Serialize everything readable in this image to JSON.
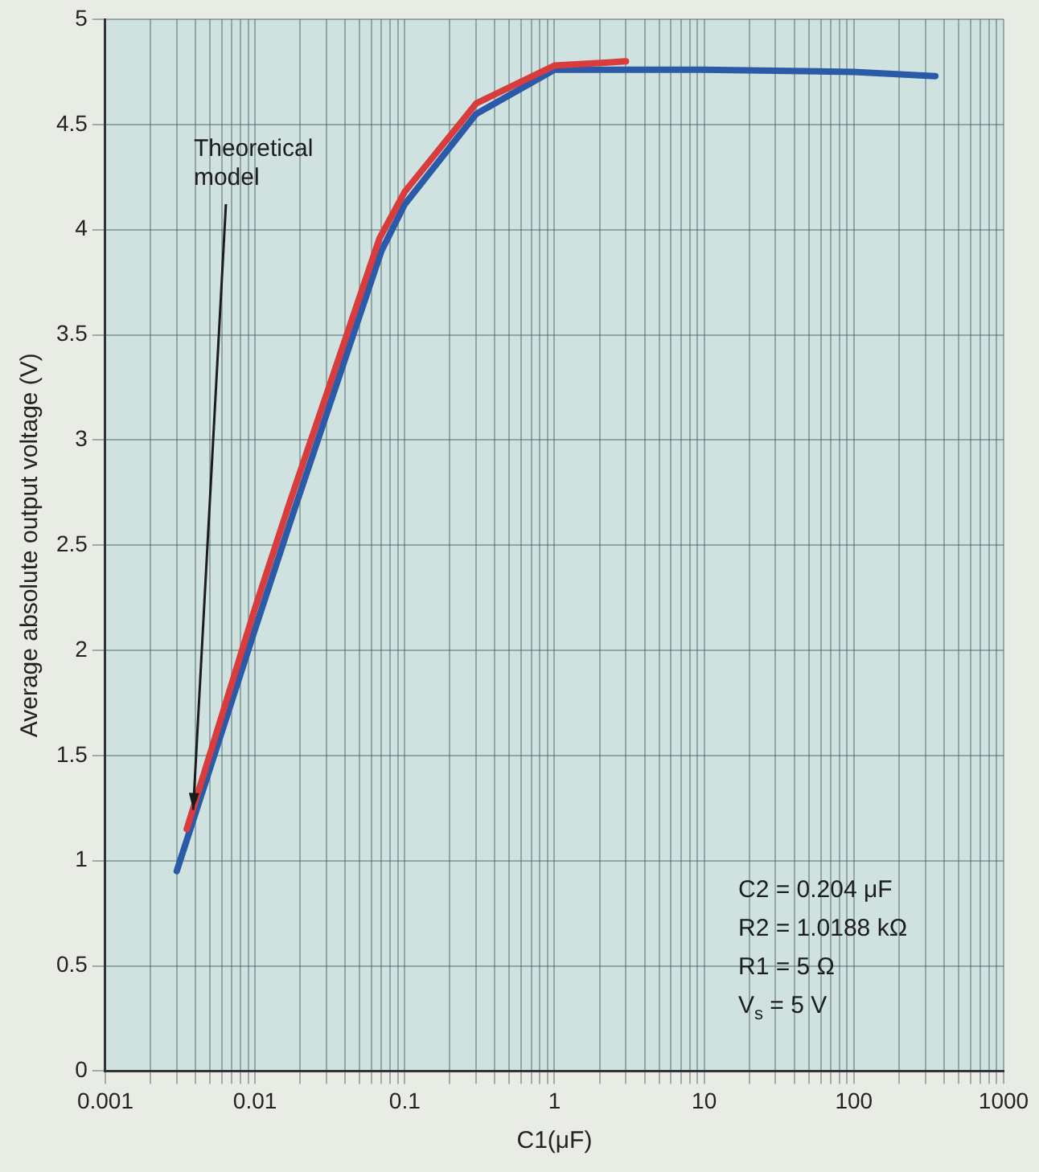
{
  "chart_data": {
    "type": "line",
    "xlabel": "C1(μF)",
    "ylabel": "Average absolute output voltage (V)",
    "log": "x",
    "xlim": [
      0.001,
      1000
    ],
    "ylim": [
      0,
      5
    ],
    "xticks": [
      0.001,
      {
        "value": 0.002,
        "label": null
      },
      {
        "value": 0.003,
        "label": null
      },
      {
        "value": 0.004,
        "label": null
      },
      {
        "value": 0.005,
        "label": null
      },
      {
        "value": 0.006,
        "label": null
      },
      {
        "value": 0.007,
        "label": null
      },
      {
        "value": 0.008,
        "label": null
      },
      {
        "value": 0.009,
        "label": null
      },
      0.01,
      {
        "value": 0.02,
        "label": null
      },
      {
        "value": 0.03,
        "label": null
      },
      {
        "value": 0.04,
        "label": null
      },
      {
        "value": 0.05,
        "label": null
      },
      {
        "value": 0.06,
        "label": null
      },
      {
        "value": 0.07,
        "label": null
      },
      {
        "value": 0.08,
        "label": null
      },
      {
        "value": 0.09,
        "label": null
      },
      0.1,
      {
        "value": 0.2,
        "label": null
      },
      {
        "value": 0.3,
        "label": null
      },
      {
        "value": 0.4,
        "label": null
      },
      {
        "value": 0.5,
        "label": null
      },
      {
        "value": 0.6,
        "label": null
      },
      {
        "value": 0.7,
        "label": null
      },
      {
        "value": 0.8,
        "label": null
      },
      {
        "value": 0.9,
        "label": null
      },
      1,
      {
        "value": 2,
        "label": null
      },
      {
        "value": 3,
        "label": null
      },
      {
        "value": 4,
        "label": null
      },
      {
        "value": 5,
        "label": null
      },
      {
        "value": 6,
        "label": null
      },
      {
        "value": 7,
        "label": null
      },
      {
        "value": 8,
        "label": null
      },
      {
        "value": 9,
        "label": null
      },
      10,
      {
        "value": 20,
        "label": null
      },
      {
        "value": 30,
        "label": null
      },
      {
        "value": 40,
        "label": null
      },
      {
        "value": 50,
        "label": null
      },
      {
        "value": 60,
        "label": null
      },
      {
        "value": 70,
        "label": null
      },
      {
        "value": 80,
        "label": null
      },
      {
        "value": 90,
        "label": null
      },
      100,
      {
        "value": 200,
        "label": null
      },
      {
        "value": 300,
        "label": null
      },
      {
        "value": 400,
        "label": null
      },
      {
        "value": 500,
        "label": null
      },
      {
        "value": 600,
        "label": null
      },
      {
        "value": 700,
        "label": null
      },
      {
        "value": 800,
        "label": null
      },
      {
        "value": 900,
        "label": null
      },
      1000
    ],
    "yticks": [
      0,
      0.5,
      1,
      1.5,
      2,
      2.5,
      3,
      3.5,
      4,
      4.5,
      5
    ],
    "grid": true,
    "legend": false,
    "marker": "none",
    "line_style": "solid",
    "series": [
      {
        "name": "Theoretical model",
        "color": "#d83c3c",
        "x": [
          0.0035,
          0.01,
          0.017,
          0.068,
          0.1,
          0.3,
          1,
          3
        ],
        "values": [
          1.15,
          2.2,
          2.7,
          3.96,
          4.18,
          4.6,
          4.78,
          4.8
        ]
      },
      {
        "color": "#2a5aa8",
        "x": [
          0.003,
          0.01,
          0.017,
          0.07,
          0.1,
          0.3,
          1,
          10,
          100,
          350
        ],
        "values": [
          0.95,
          2.1,
          2.6,
          3.9,
          4.12,
          4.55,
          4.76,
          4.76,
          4.75,
          4.73
        ]
      }
    ],
    "annotations": [
      "C2 = 0.204 μF",
      "R2 = 1.0188 kΩ",
      "R1 = 5 Ω",
      "V$_{s}$ = 5 V"
    ]
  }
}
